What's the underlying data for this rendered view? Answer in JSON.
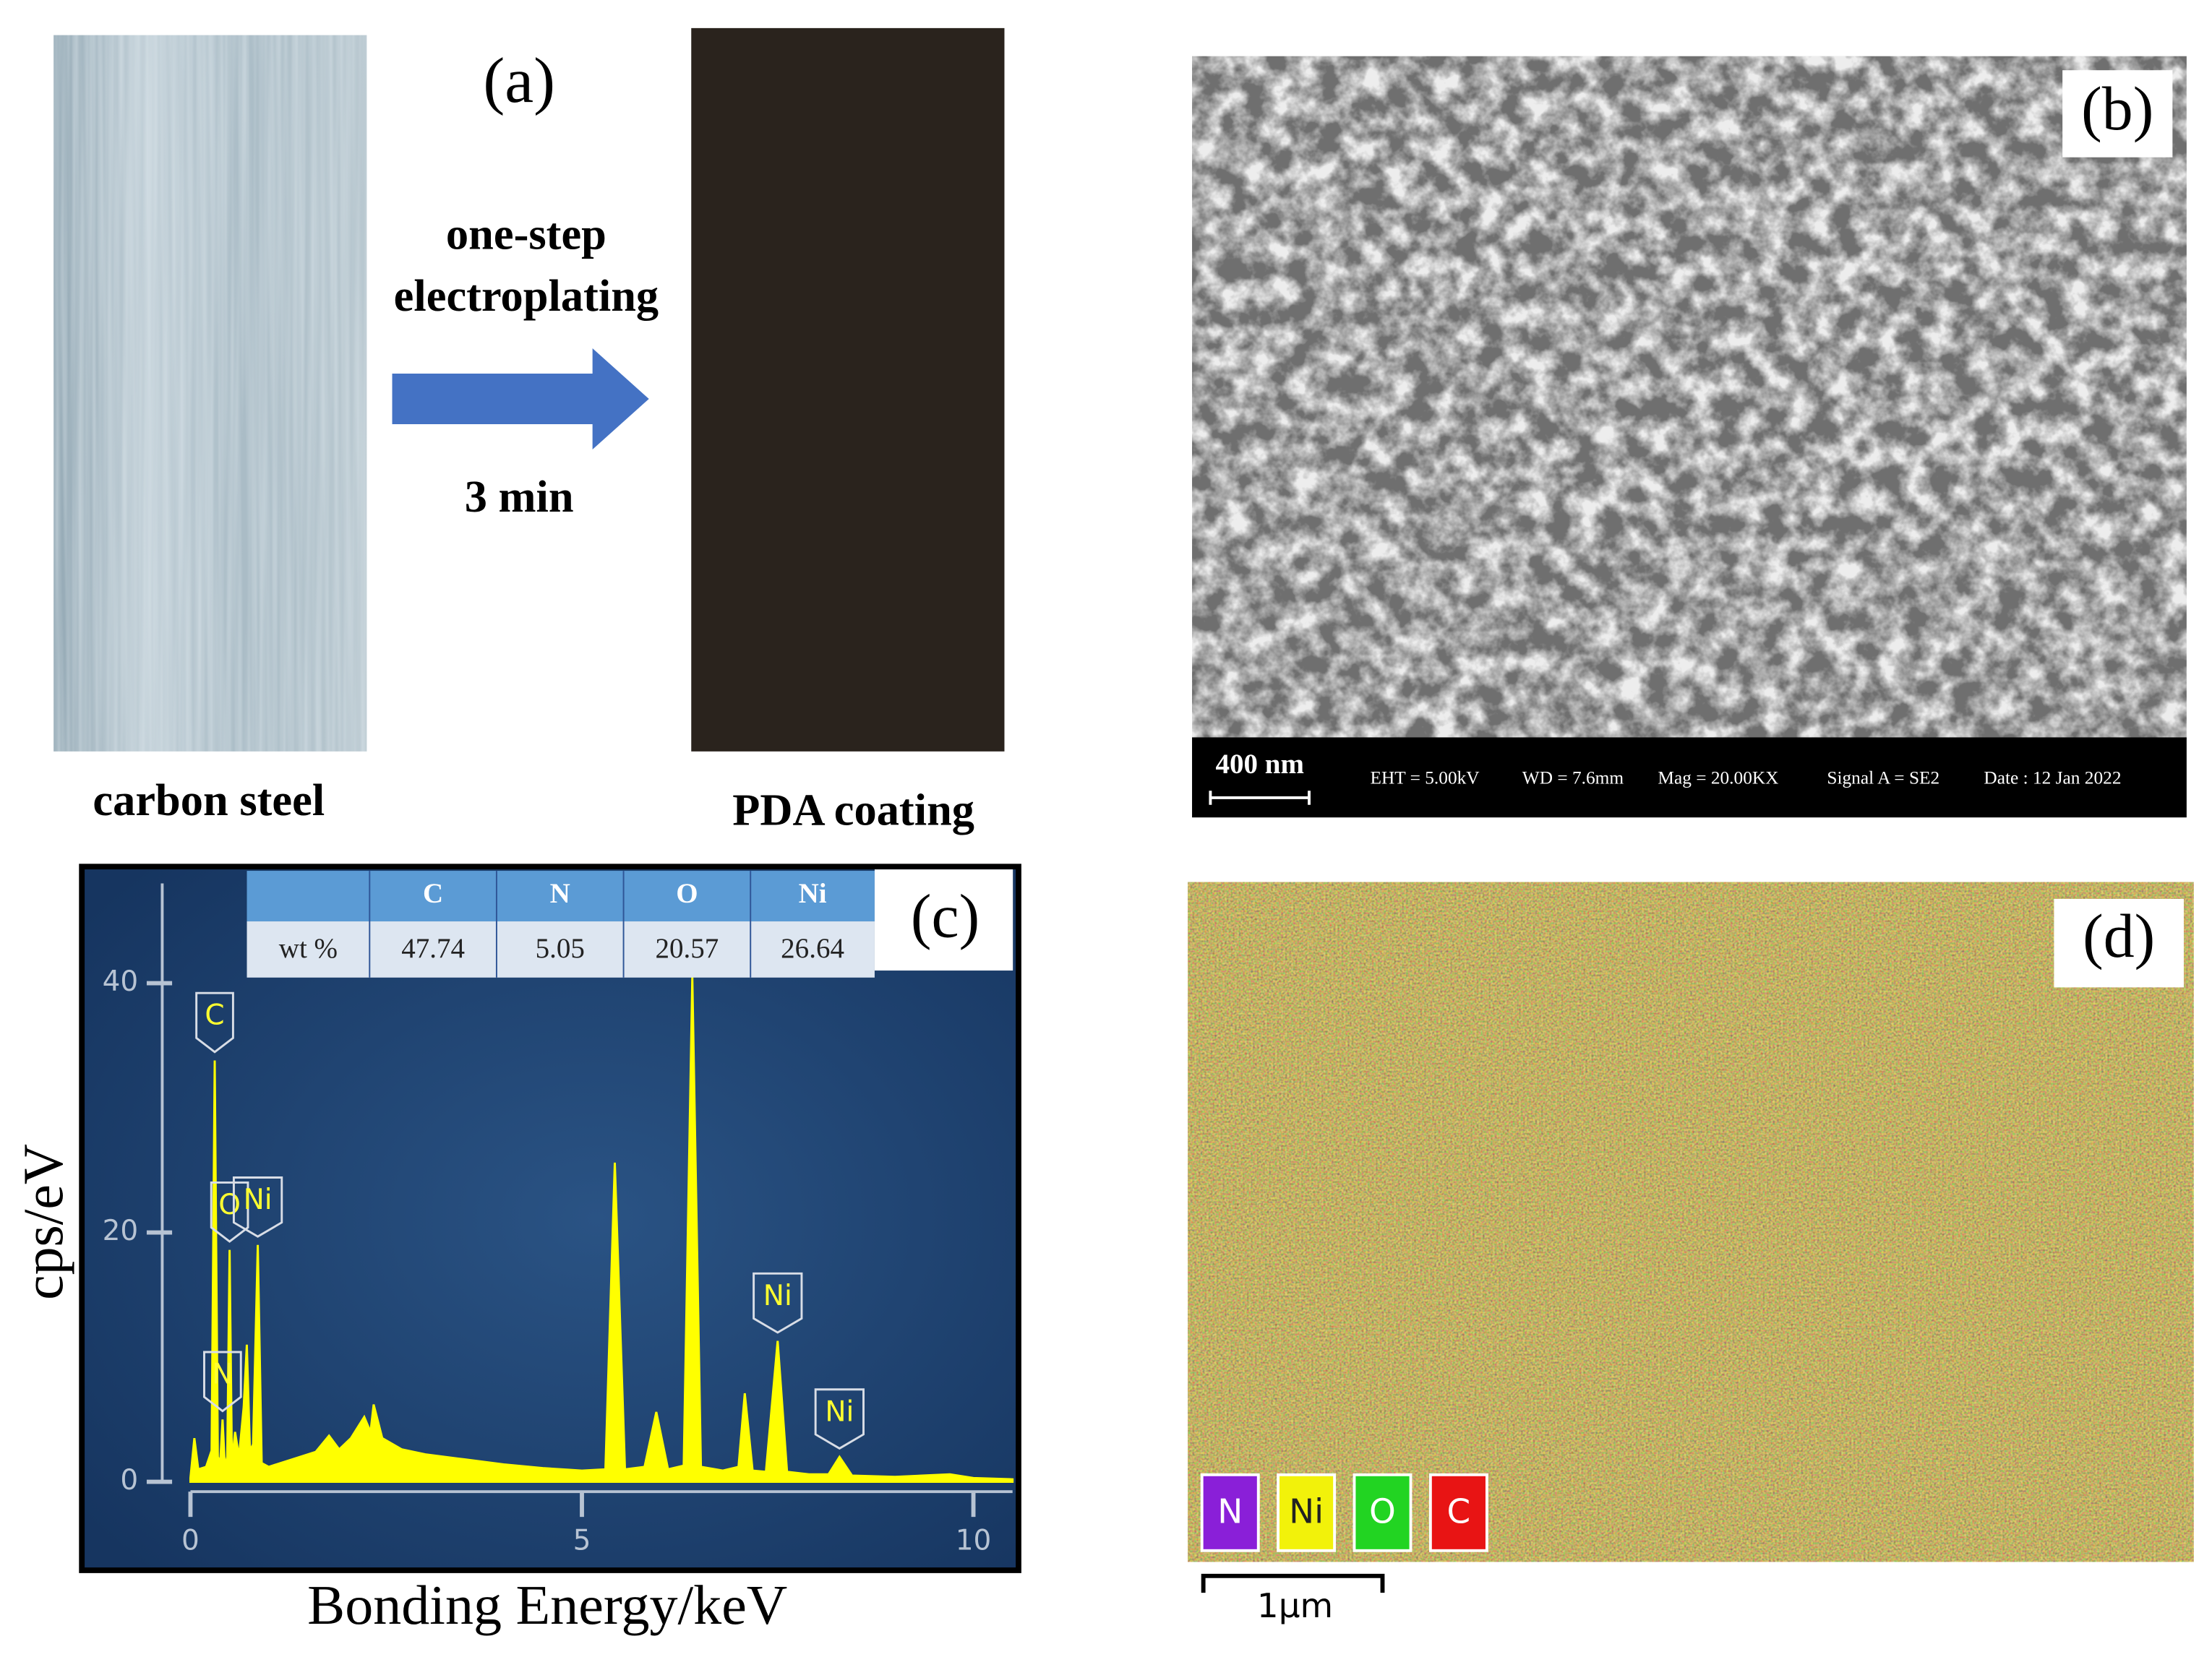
{
  "panel_a": {
    "label": "(a)",
    "caption_left": "carbon steel",
    "caption_right": "PDA coating",
    "process": [
      "one-step",
      "electroplating"
    ],
    "duration": "3 min"
  },
  "panel_b": {
    "label": "(b)",
    "scale_bar": "400 nm",
    "info": [
      "EHT = 5.00kV",
      "WD = 7.6mm",
      "Mag = 20.00KX",
      "Signal A = SE2",
      "Date :  12 Jan 2022"
    ]
  },
  "panel_c": {
    "label": "(c)",
    "table": {
      "row_label": "wt %",
      "columns": [
        "C",
        "N",
        "O",
        "Ni"
      ],
      "values": [
        47.74,
        5.05,
        20.57,
        26.64
      ]
    }
  },
  "chart_data": {
    "type": "area",
    "xlabel": "Bonding Energy/keV",
    "ylabel": "cps/eV",
    "color": "#ffff00",
    "x": [
      0,
      0.05,
      0.1,
      0.2,
      0.27,
      0.31,
      0.35,
      0.38,
      0.41,
      0.44,
      0.47,
      0.5,
      0.53,
      0.57,
      0.62,
      0.68,
      0.72,
      0.76,
      0.8,
      0.86,
      0.91,
      1.0,
      1.3,
      1.6,
      1.77,
      1.9,
      2.05,
      2.22,
      2.3,
      2.34,
      2.45,
      2.7,
      3.0,
      3.5,
      4.0,
      4.5,
      5.0,
      5.3,
      5.42,
      5.55,
      5.8,
      5.95,
      6.1,
      6.3,
      6.41,
      6.52,
      6.8,
      7.0,
      7.08,
      7.18,
      7.35,
      7.5,
      7.62,
      7.9,
      8.15,
      8.29,
      8.45,
      9.0,
      9.7,
      10.0,
      10.5
    ],
    "values": [
      0.3,
      3.5,
      1,
      1.2,
      2.5,
      33.8,
      2,
      1.5,
      5,
      1.2,
      2,
      18.6,
      1.5,
      4,
      2,
      6,
      11,
      2.5,
      3,
      19,
      1.5,
      1.2,
      1.8,
      2.4,
      3.7,
      2.6,
      3.5,
      5.2,
      4,
      6.2,
      3.5,
      2.6,
      2.2,
      1.8,
      1.4,
      1.1,
      0.9,
      1,
      25.6,
      1,
      1.2,
      5.6,
      1,
      1.3,
      40.5,
      1.2,
      0.9,
      1.2,
      7.1,
      0.9,
      0.8,
      11.3,
      0.8,
      0.6,
      0.6,
      2,
      0.5,
      0.4,
      0.6,
      0.3,
      0.2
    ],
    "xlim": [
      0,
      10.5
    ],
    "ylim": [
      0,
      48
    ],
    "xticks": [
      0,
      5,
      10
    ],
    "yticks": [
      0,
      20,
      40
    ],
    "annotations": [
      {
        "text": "C",
        "x": 0.31
      },
      {
        "text": "N",
        "x": 0.41
      },
      {
        "text": "O",
        "x": 0.5
      },
      {
        "text": "Ni",
        "x": 0.86
      },
      {
        "text": "Ni",
        "x": 7.5
      },
      {
        "text": "Ni",
        "x": 8.29
      }
    ]
  },
  "panel_d": {
    "label": "(d)",
    "legend": [
      {
        "name": "N",
        "color": "#8a1fd8"
      },
      {
        "name": "Ni",
        "color": "#f2f20a"
      },
      {
        "name": "O",
        "color": "#22d422"
      },
      {
        "name": "C",
        "color": "#e81414"
      }
    ],
    "scale_bar": "1µm"
  }
}
